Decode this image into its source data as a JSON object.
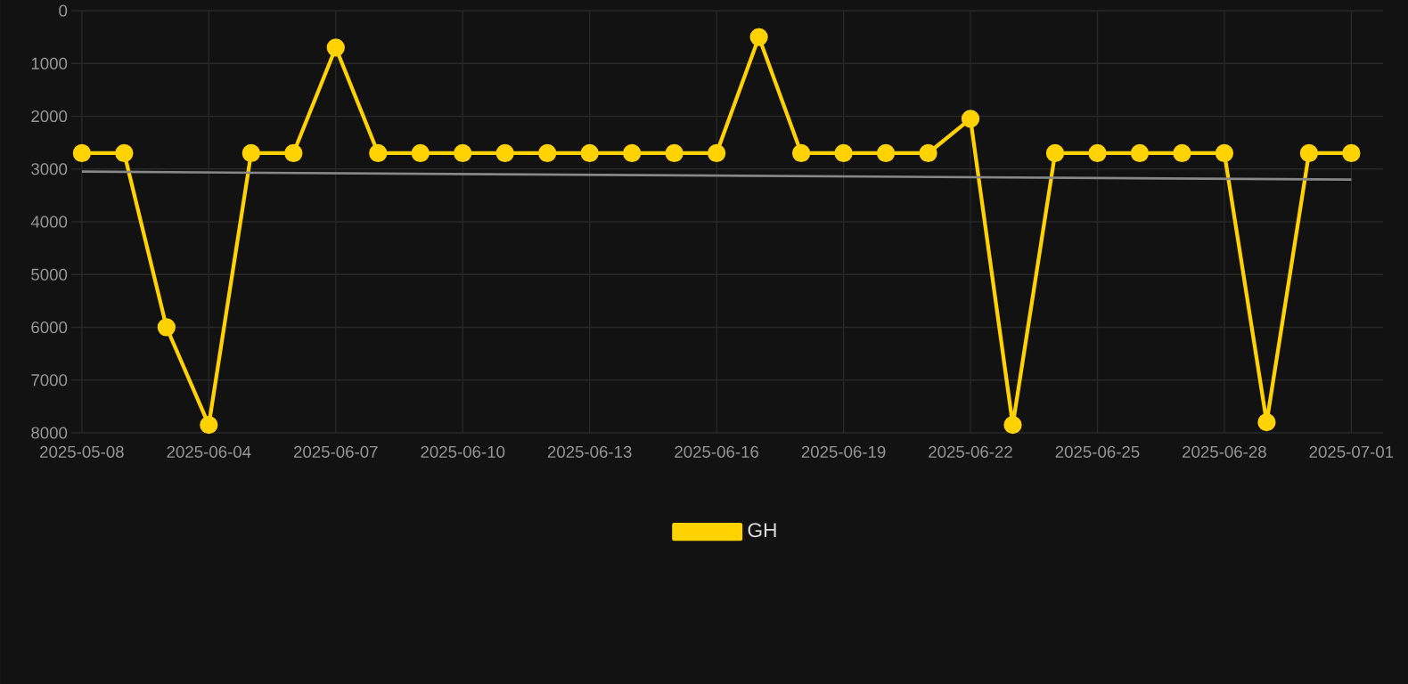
{
  "chart_data": {
    "type": "line",
    "categories": [
      "2025-05-08",
      null,
      null,
      "2025-06-04",
      null,
      null,
      "2025-06-07",
      null,
      null,
      "2025-06-10",
      null,
      null,
      "2025-06-13",
      null,
      null,
      "2025-06-16",
      null,
      null,
      "2025-06-19",
      null,
      null,
      "2025-06-22",
      null,
      null,
      "2025-06-25",
      null,
      null,
      "2025-06-28",
      null,
      null,
      "2025-07-01"
    ],
    "series": [
      {
        "name": "GH",
        "color": "#ffd200",
        "marker": "circle",
        "values": [
          2700,
          2700,
          6000,
          7850,
          2700,
          2700,
          700,
          2700,
          2700,
          2700,
          2700,
          2700,
          2700,
          2700,
          2700,
          2700,
          500,
          2700,
          2700,
          2700,
          2700,
          2050,
          7850,
          2700,
          2700,
          2700,
          2700,
          2700,
          7800,
          2700,
          2700
        ]
      },
      {
        "color": "#888888",
        "marker": "none",
        "values": [
          3050,
          null,
          null,
          null,
          null,
          null,
          null,
          null,
          null,
          null,
          null,
          null,
          null,
          null,
          null,
          null,
          null,
          null,
          null,
          null,
          null,
          null,
          null,
          null,
          null,
          null,
          null,
          null,
          null,
          null,
          3200
        ]
      }
    ],
    "ylim": [
      8000,
      0
    ],
    "yticks": [
      0,
      1000,
      2000,
      3000,
      4000,
      5000,
      6000,
      7000,
      8000
    ],
    "grid": true,
    "legend": "bottom"
  }
}
